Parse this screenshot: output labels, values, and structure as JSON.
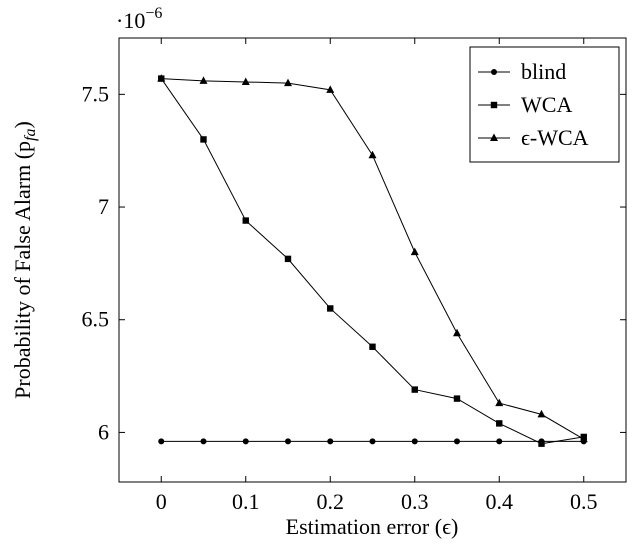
{
  "chart_data": {
    "type": "line",
    "multiplier_label": "·10",
    "multiplier_exponent": "−6",
    "xlabel": "Estimation error (ϵ)",
    "ylabel": "Probability of False Alarm (p",
    "ylabel_sub": "fa",
    "ylabel_close": ")",
    "x": [
      0,
      0.05,
      0.1,
      0.15,
      0.2,
      0.25,
      0.3,
      0.35,
      0.4,
      0.45,
      0.5
    ],
    "xlim": [
      -0.05,
      0.55
    ],
    "ylim": [
      5.78,
      7.75
    ],
    "xticks": [
      0,
      0.1,
      0.2,
      0.3,
      0.4,
      0.5
    ],
    "xtick_labels": [
      "0",
      "0.1",
      "0.2",
      "0.3",
      "0.4",
      "0.5"
    ],
    "yticks": [
      6,
      6.5,
      7,
      7.5
    ],
    "ytick_labels": [
      "6",
      "6.5",
      "7",
      "7.5"
    ],
    "legend_position": "top-right",
    "grid": false,
    "series": [
      {
        "name": "blind",
        "marker": "circle",
        "values": [
          5.96,
          5.96,
          5.96,
          5.96,
          5.96,
          5.96,
          5.96,
          5.96,
          5.96,
          5.96,
          5.96
        ]
      },
      {
        "name": "WCA",
        "marker": "square",
        "values": [
          7.57,
          7.3,
          6.94,
          6.77,
          6.55,
          6.38,
          6.19,
          6.15,
          6.04,
          5.95,
          5.98
        ]
      },
      {
        "name": "ϵ-WCA",
        "marker": "triangle",
        "values": [
          7.57,
          7.56,
          7.555,
          7.55,
          7.52,
          7.23,
          6.8,
          6.44,
          6.13,
          6.08,
          5.97
        ]
      }
    ],
    "colors": {
      "line": "#000000",
      "marker": "#000000",
      "frame": "#000000"
    }
  }
}
